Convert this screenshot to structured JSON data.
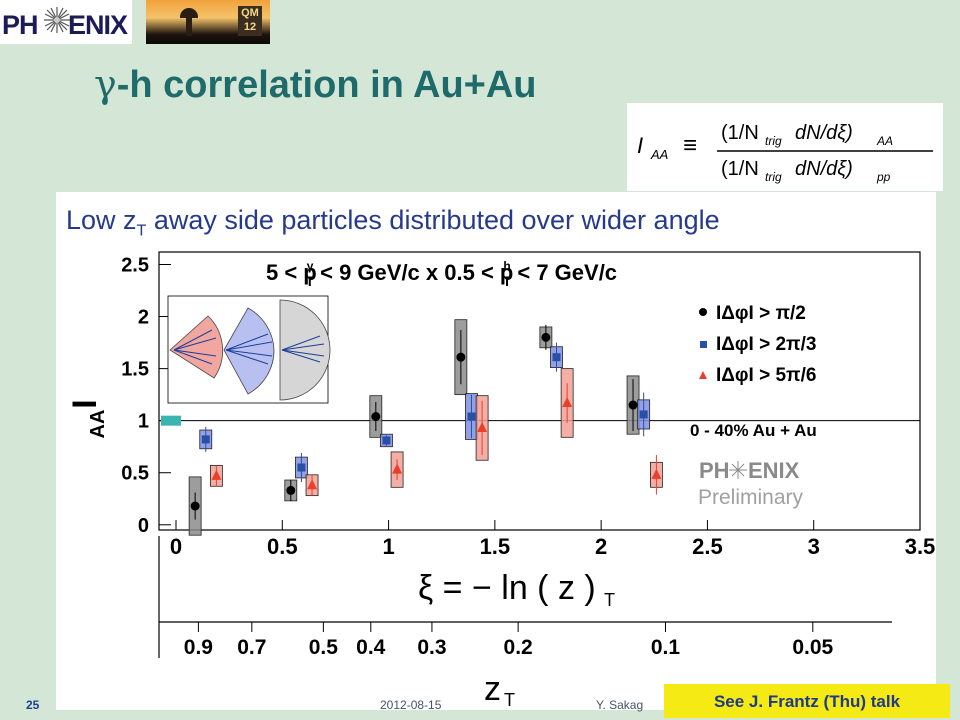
{
  "header": {
    "logo_left": "PH",
    "logo_right": "ENIX",
    "badge_top": "QM",
    "badge_bottom": "12",
    "title_symbol": "γ",
    "title_rest": "-h correlation in Au+Au"
  },
  "formula": {
    "lhs": "I",
    "lhs_sub": "AA",
    "equiv": "≡",
    "numerator": "(1/N",
    "numerator_sub": "trig",
    "numerator_mid": "dN/dξ)",
    "numerator_post_sub": "AA",
    "denominator": "(1/N",
    "denominator_sub": "trig",
    "denominator_mid": "dN/dξ)",
    "denominator_post_sub": "pp"
  },
  "subtitle": {
    "pre": "Low z",
    "sub": "T",
    "post": " away side particles distributed over wider angle"
  },
  "footer": {
    "slide_number": "25",
    "date": "2012-08-15",
    "author": "Y. Sakag",
    "note": "See J. Frantz (Thu) talk"
  },
  "chart_data": {
    "type": "scatter",
    "title_parts": [
      "5 < p",
      "γ",
      "T",
      " < 9 GeV/c x 0.5 < p",
      "h",
      "T",
      " < 7 GeV/c"
    ],
    "ylabel": "I",
    "ylabel_sub": "AA",
    "xlabel": "ξ = − ln ( z  )",
    "xlabel_sub": "T",
    "xlim": [
      -0.08,
      3.5
    ],
    "ylim": [
      -0.05,
      2.62
    ],
    "xticks": [
      "0",
      "0.5",
      "1",
      "1.5",
      "2",
      "2.5",
      "3",
      "3.5"
    ],
    "xtick_values": [
      0,
      0.5,
      1,
      1.5,
      2,
      2.5,
      3,
      3.5
    ],
    "yticks": [
      "0",
      "0.5",
      "1",
      "1.5",
      "2",
      "2.5"
    ],
    "ytick_values": [
      0,
      0.5,
      1,
      1.5,
      2,
      2.5
    ],
    "zt_ticks": [
      "0.9",
      "0.7",
      "0.5",
      "0.4",
      "0.3",
      "0.2",
      "0.1",
      "0.05"
    ],
    "zt_values": [
      0.9,
      0.7,
      0.5,
      0.4,
      0.3,
      0.2,
      0.1,
      0.05
    ],
    "zt_label": "z",
    "zt_label_sub": "T",
    "reference_line": 1.0,
    "annotation": "0 - 40% Au + Au",
    "watermark_top_left": "PH",
    "watermark_top_right": "ENIX",
    "watermark_bottom": "Preliminary",
    "series": [
      {
        "name": "IΔφI > π/2",
        "marker": "circle",
        "color": "#000000",
        "box_color": "#8c8c8c",
        "x": [
          0.09,
          0.54,
          0.94,
          1.34,
          1.74,
          2.15
        ],
        "y": [
          0.18,
          0.33,
          1.04,
          1.61,
          1.8,
          1.15
        ],
        "err": [
          0.13,
          0.1,
          0.14,
          0.26,
          0.12,
          0.25
        ],
        "syst": [
          0.28,
          0.1,
          0.2,
          0.36,
          0.1,
          0.28
        ]
      },
      {
        "name": "IΔφI > 2π/3",
        "marker": "square",
        "color": "#2a4fa6",
        "box_color": "#7f8fe0",
        "x": [
          0.14,
          0.59,
          0.99,
          1.39,
          1.79,
          2.2
        ],
        "y": [
          0.82,
          0.55,
          0.81,
          1.04,
          1.61,
          1.06
        ],
        "err": [
          0.12,
          0.14,
          0.05,
          0.21,
          0.14,
          0.21
        ],
        "syst": [
          0.09,
          0.1,
          0.06,
          0.22,
          0.1,
          0.14
        ]
      },
      {
        "name": "IΔφI > 5π/6",
        "marker": "triangle",
        "color": "#e8402a",
        "box_color": "#f2a097",
        "x": [
          0.19,
          0.64,
          1.04,
          1.44,
          1.84,
          2.26
        ],
        "y": [
          0.47,
          0.38,
          0.53,
          0.93,
          1.17,
          0.48
        ],
        "err": [
          0.1,
          0.1,
          0.1,
          0.26,
          0.19,
          0.19
        ],
        "syst": [
          0.1,
          0.1,
          0.17,
          0.31,
          0.33,
          0.12
        ]
      }
    ]
  }
}
